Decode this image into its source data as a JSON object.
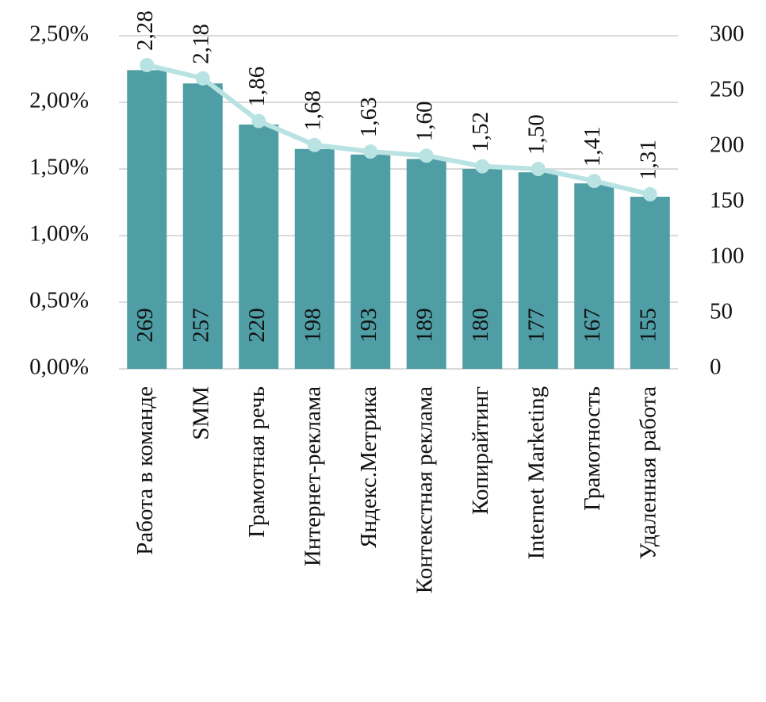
{
  "chart_data": {
    "type": "bar",
    "categories": [
      "Работа в команде",
      "SMM",
      "Грамотная речь",
      "Интернет-реклама",
      "Яндекс.Метрика",
      "Контекстная реклама",
      "Копирайтинг",
      "Internet Marketing",
      "Грамотность",
      "Удаленная работа"
    ],
    "series": [
      {
        "type": "bar",
        "axis": "y2",
        "color": "#4f9ea6",
        "values": [
          269,
          257,
          220,
          198,
          193,
          189,
          180,
          177,
          167,
          155
        ]
      },
      {
        "type": "line",
        "axis": "y",
        "color": "#b9e3e3",
        "values": [
          2.28,
          2.18,
          1.86,
          1.68,
          1.63,
          1.6,
          1.52,
          1.5,
          1.41,
          1.31
        ],
        "value_labels": [
          "2,28",
          "2,18",
          "1,86",
          "1,68",
          "1,63",
          "1,60",
          "1,52",
          "1,50",
          "1,41",
          "1,31"
        ]
      }
    ],
    "ylim": [
      0,
      2.5
    ],
    "yticks": [
      {
        "value": 0,
        "label": "0,00%"
      },
      {
        "value": 0.5,
        "label": "0,50%"
      },
      {
        "value": 1,
        "label": "1,00%"
      },
      {
        "value": 1.5,
        "label": "1,50%"
      },
      {
        "value": 2,
        "label": "2,00%"
      },
      {
        "value": 2.5,
        "label": "2,50%"
      }
    ],
    "y2lim": [
      0,
      300
    ],
    "y2ticks": [
      0,
      50,
      100,
      150,
      200,
      250,
      300
    ],
    "grid": true
  }
}
